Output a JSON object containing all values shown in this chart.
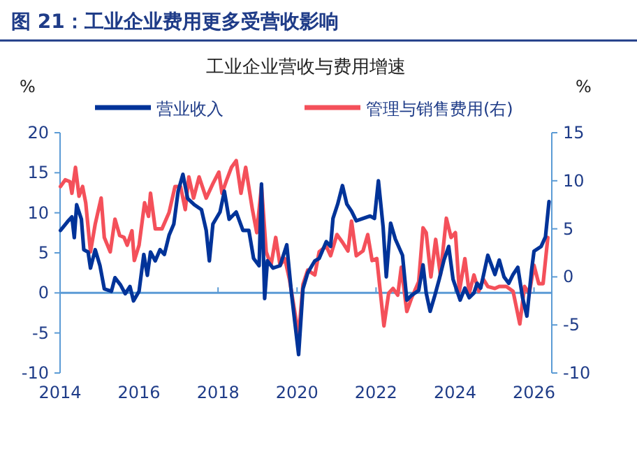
{
  "chart_data": {
    "type": "line",
    "title": "图 21：工业企业费用更多受营收影响",
    "subtitle": "工业企业营收与费用增速",
    "ylabel": "%",
    "y2label": "%",
    "xlim": [
      2014,
      2026.45
    ],
    "xticks": [
      2014,
      2016,
      2018,
      2020,
      2022,
      2024,
      2026
    ],
    "ylim": [
      -10,
      20
    ],
    "yticks": [
      -10,
      -5,
      0,
      5,
      10,
      15,
      20
    ],
    "y2lim": [
      -10,
      15
    ],
    "y2ticks": [
      -10,
      -5,
      0,
      5,
      10,
      15
    ],
    "grid": false,
    "ref_lines": [
      {
        "axis": "y",
        "value": 0,
        "color": "#5b9bd5"
      }
    ],
    "legend": "top",
    "marker": "none",
    "line_style": "solid",
    "series": [
      {
        "name": "营业收入",
        "color": "#003399",
        "x": [
          2014.01,
          2014.19,
          2014.3,
          2014.36,
          2014.42,
          2014.54,
          2014.6,
          2014.71,
          2014.77,
          2014.89,
          2015.01,
          2015.12,
          2015.3,
          2015.39,
          2015.53,
          2015.65,
          2015.77,
          2015.86,
          2016.0,
          2016.12,
          2016.21,
          2016.29,
          2016.41,
          2016.53,
          2016.64,
          2016.76,
          2016.88,
          2016.99,
          2017.11,
          2017.23,
          2017.4,
          2017.58,
          2017.7,
          2017.78,
          2017.87,
          2018.05,
          2018.16,
          2018.28,
          2018.46,
          2018.63,
          2018.78,
          2018.9,
          2019.04,
          2019.1,
          2019.18,
          2019.25,
          2019.39,
          2019.57,
          2019.74,
          2019.86,
          2020.04,
          2020.15,
          2020.27,
          2020.45,
          2020.56,
          2020.74,
          2020.85,
          2020.91,
          2021.03,
          2021.15,
          2021.26,
          2021.38,
          2021.5,
          2021.67,
          2021.85,
          2021.96,
          2022.06,
          2022.18,
          2022.26,
          2022.37,
          2022.49,
          2022.67,
          2022.78,
          2022.9,
          2023.08,
          2023.19,
          2023.27,
          2023.37,
          2023.49,
          2023.6,
          2023.72,
          2023.84,
          2023.95,
          2024.13,
          2024.25,
          2024.36,
          2024.48,
          2024.56,
          2024.65,
          2024.83,
          2025.01,
          2025.12,
          2025.24,
          2025.36,
          2025.47,
          2025.59,
          2025.71,
          2025.82,
          2025.94,
          2026.0,
          2026.18,
          2026.29,
          2026.38
        ],
        "values": [
          7.8,
          8.9,
          9.5,
          6.9,
          11,
          9.2,
          5.4,
          5.1,
          3.1,
          5.4,
          3.4,
          0.5,
          0.2,
          1.9,
          1.0,
          -0.1,
          0.8,
          -1.0,
          0.2,
          4.8,
          2.2,
          5.1,
          4.0,
          5.4,
          4.8,
          7.2,
          8.6,
          12.7,
          14.8,
          11.8,
          11,
          10.4,
          7.8,
          4.0,
          8.6,
          10.1,
          12.7,
          9.2,
          10.1,
          7.8,
          7.8,
          4.3,
          3.4,
          13.6,
          -0.7,
          4.0,
          3.1,
          3.4,
          6.0,
          -0.1,
          -7.7,
          0.5,
          2.5,
          4.0,
          4.3,
          6.4,
          5.8,
          9.3,
          11.1,
          13.4,
          11.1,
          10.2,
          9.0,
          9.3,
          9.6,
          9.3,
          14.0,
          8.2,
          2.0,
          8.7,
          6.7,
          4.7,
          -0.9,
          -0.3,
          0.3,
          3.5,
          0,
          -2.3,
          -0.3,
          1.7,
          4.1,
          5.8,
          1.7,
          -0.9,
          0.6,
          -0.6,
          0,
          1.2,
          0.6,
          4.7,
          2.3,
          4.1,
          2.0,
          1.2,
          2.3,
          3.2,
          -0.6,
          -2.9,
          2.9,
          5.2,
          5.8,
          7.0,
          11.4
        ]
      },
      {
        "name": "管理与销售费用(右)",
        "color": "#f4505a",
        "axis": "y2",
        "x": [
          2014.01,
          2014.13,
          2014.25,
          2014.3,
          2014.39,
          2014.48,
          2014.57,
          2014.65,
          2014.77,
          2014.89,
          2015.04,
          2015.12,
          2015.27,
          2015.39,
          2015.51,
          2015.62,
          2015.7,
          2015.82,
          2015.88,
          2016.0,
          2016.14,
          2016.24,
          2016.29,
          2016.41,
          2016.58,
          2016.76,
          2016.91,
          2017.05,
          2017.17,
          2017.26,
          2017.38,
          2017.52,
          2017.7,
          2017.87,
          2018.02,
          2018.1,
          2018.22,
          2018.34,
          2018.46,
          2018.58,
          2018.7,
          2018.87,
          2018.98,
          2019.1,
          2019.22,
          2019.34,
          2019.46,
          2019.57,
          2019.69,
          2019.81,
          2020.04,
          2020.15,
          2020.27,
          2020.45,
          2020.56,
          2020.74,
          2020.85,
          2021.01,
          2021.15,
          2021.29,
          2021.38,
          2021.5,
          2021.67,
          2021.79,
          2021.9,
          2022.02,
          2022.2,
          2022.32,
          2022.43,
          2022.55,
          2022.64,
          2022.78,
          2022.9,
          2023.08,
          2023.19,
          2023.27,
          2023.39,
          2023.51,
          2023.63,
          2023.78,
          2023.9,
          2024.01,
          2024.11,
          2024.25,
          2024.36,
          2024.48,
          2024.6,
          2024.71,
          2024.83,
          2025.01,
          2025.12,
          2025.3,
          2025.47,
          2025.64,
          2025.76,
          2025.88,
          2026.0,
          2026.12,
          2026.23,
          2026.35
        ],
        "values": [
          9.4,
          10.1,
          9.9,
          8.7,
          11.4,
          8.4,
          9.4,
          7.7,
          2.6,
          5.5,
          8.2,
          4.1,
          2.6,
          6.0,
          4.3,
          4.1,
          3.3,
          4.8,
          1.7,
          3.3,
          7.7,
          6.3,
          8.7,
          5.0,
          5.0,
          6.7,
          9.4,
          9.4,
          7.0,
          10.4,
          8.2,
          10.4,
          8.2,
          9.7,
          10.9,
          8.7,
          10.1,
          11.4,
          12.1,
          8.7,
          11.4,
          7.0,
          4.6,
          9.4,
          2.6,
          1.2,
          4.1,
          1.2,
          1.9,
          -0.3,
          -6.1,
          -0.8,
          0.7,
          0.2,
          2.6,
          3.2,
          2.2,
          4.4,
          3.6,
          2.7,
          5.8,
          2.2,
          2.7,
          4.4,
          1.7,
          1.9,
          -5.1,
          -1.7,
          -1.2,
          -1.9,
          1.0,
          -3.6,
          -2.2,
          -0.5,
          5.1,
          4.6,
          0,
          3.9,
          0.2,
          6.1,
          4.1,
          4.6,
          -1.5,
          1.9,
          -1.7,
          0.2,
          -1.5,
          -0.2,
          -1.0,
          -1.2,
          -1.0,
          -1.0,
          -1.5,
          -4.9,
          -1.0,
          -1.7,
          1.2,
          -0.7,
          -0.7,
          4.1
        ]
      }
    ]
  }
}
